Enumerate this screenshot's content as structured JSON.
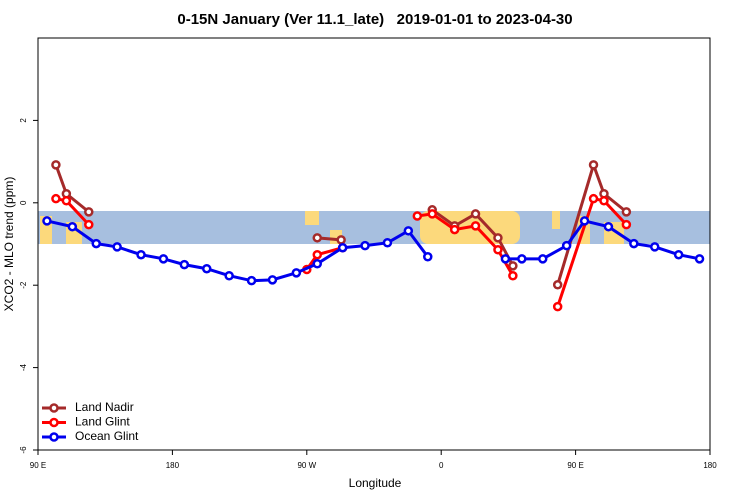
{
  "chart_data": {
    "type": "line",
    "title": "0-15N January (Ver 11.1_late)   2019-01-01 to 2023-04-30",
    "x_label": "Longitude",
    "y_label": "XCO2 - MLO trend (ppm)",
    "xlim": [
      90,
      540
    ],
    "xticks": [
      {
        "value": 90,
        "label": "90 E"
      },
      180,
      {
        "value": 270,
        "label": "90 W"
      },
      {
        "value": 360,
        "label": "0"
      },
      {
        "value": 450,
        "label": "90 E"
      },
      {
        "value": 540,
        "label": "180"
      }
    ],
    "ylim": [
      -6,
      4
    ],
    "yticks": [
      -6,
      -4,
      -2,
      0,
      2
    ],
    "legend": "bottom-left",
    "series": [
      {
        "name": "Land Nadir",
        "color": "#a52a2a",
        "x": [
          102,
          109,
          124,
          null,
          277,
          293,
          null,
          354,
          369,
          383,
          398,
          408,
          null,
          438,
          462,
          469,
          484
        ],
        "values": [
          0.92,
          0.22,
          -0.22,
          null,
          -0.85,
          -0.9,
          null,
          -0.17,
          -0.56,
          -0.27,
          -0.85,
          -1.53,
          null,
          -1.99,
          0.92,
          0.22,
          -0.22
        ]
      },
      {
        "name": "Land Glint",
        "color": "#ff0000",
        "x": [
          102,
          109,
          124,
          null,
          270,
          277,
          294,
          null,
          344,
          354,
          369,
          383,
          398,
          408,
          null,
          438,
          462,
          469,
          484
        ],
        "values": [
          0.1,
          0.05,
          -0.53,
          null,
          -1.62,
          -1.26,
          -1.09,
          null,
          -0.32,
          -0.27,
          -0.65,
          -0.56,
          -1.14,
          -1.77,
          null,
          -2.52,
          0.1,
          0.05,
          -0.53
        ]
      },
      {
        "name": "Ocean Glint",
        "color": "#0000ee",
        "x": [
          96,
          113,
          129,
          143,
          159,
          174,
          188,
          203,
          218,
          233,
          247,
          263,
          277,
          294,
          309,
          324,
          338,
          351,
          null,
          403,
          414,
          428,
          444,
          456,
          472,
          489,
          503,
          519,
          533
        ],
        "values": [
          -0.44,
          -0.58,
          -0.99,
          -1.07,
          -1.26,
          -1.36,
          -1.5,
          -1.6,
          -1.77,
          -1.89,
          -1.87,
          -1.7,
          -1.48,
          -1.09,
          -1.04,
          -0.97,
          -0.68,
          -1.31,
          null,
          -1.36,
          -1.36,
          -1.36,
          -1.04,
          -0.44,
          -0.58,
          -0.99,
          -1.07,
          -1.26,
          -1.36
        ]
      }
    ]
  }
}
